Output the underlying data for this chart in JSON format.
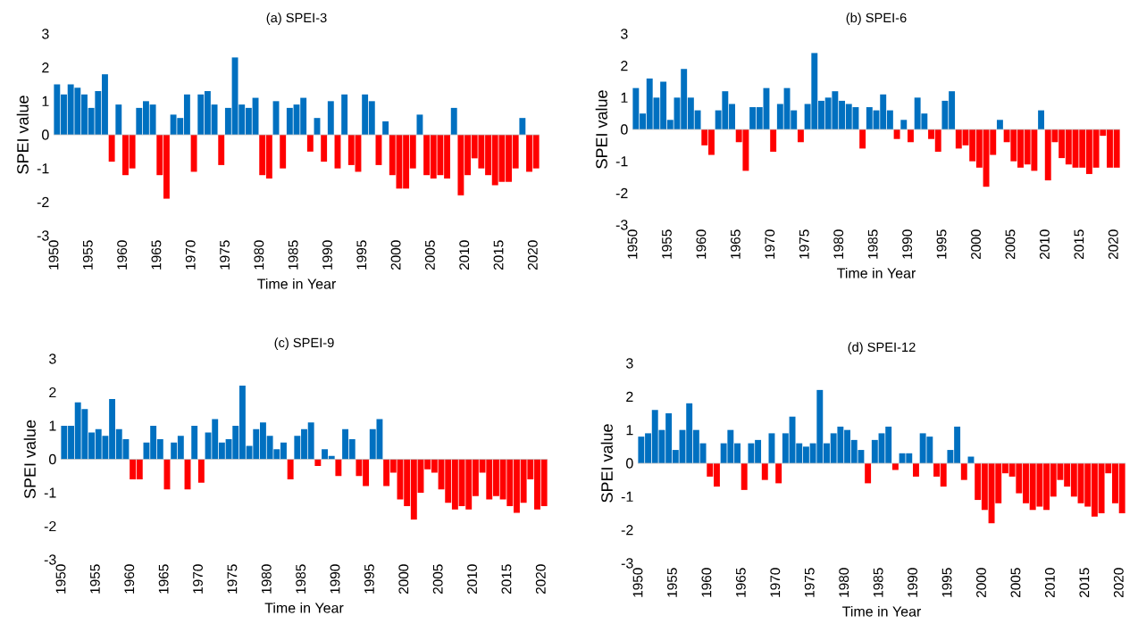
{
  "chart_data": [
    {
      "type": "bar",
      "title": "(a) SPEI-3",
      "xlabel": "Time in Year",
      "ylabel": "SPEI value",
      "x": [
        1950.5,
        1951.5,
        1952.5,
        1953.5,
        1954.5,
        1955.5,
        1956.5,
        1957.5,
        1958.5,
        1959.5,
        1960.5,
        1961.5,
        1962.5,
        1963.5,
        1964.5,
        1965.5,
        1966.5,
        1967.5,
        1968.5,
        1969.5,
        1970.5,
        1971.5,
        1972.5,
        1973.5,
        1974.5,
        1975.5,
        1976.5,
        1977.5,
        1978.5,
        1979.5,
        1980.5,
        1981.5,
        1982.5,
        1983.5,
        1984.5,
        1985.5,
        1986.5,
        1987.5,
        1988.5,
        1989.5,
        1990.5,
        1991.5,
        1992.5,
        1993.5,
        1994.5,
        1995.5,
        1996.5,
        1997.5,
        1998.5,
        1999.5,
        2000.5,
        2001.5,
        2002.5,
        2003.5,
        2004.5,
        2005.5,
        2006.5,
        2007.5,
        2008.5,
        2009.5,
        2010.5,
        2011.5,
        2012.5,
        2013.5,
        2014.5,
        2015.5,
        2016.5,
        2017.5,
        2018.5,
        2019.5,
        2020.5
      ],
      "values": [
        1.5,
        1.2,
        1.5,
        1.4,
        1.2,
        0.8,
        1.3,
        1.8,
        -0.8,
        0.9,
        -1.2,
        -1.0,
        0.8,
        1.0,
        0.9,
        -1.2,
        -1.9,
        0.6,
        0.5,
        1.2,
        -1.1,
        1.2,
        1.3,
        0.9,
        -0.9,
        0.8,
        2.3,
        0.9,
        0.8,
        1.1,
        -1.2,
        -1.3,
        1.0,
        -1.0,
        0.8,
        0.9,
        1.1,
        -0.5,
        0.5,
        -0.8,
        1.0,
        -1.0,
        1.2,
        -0.9,
        -1.1,
        1.2,
        1.0,
        -0.9,
        0.4,
        -1.2,
        -1.6,
        -1.6,
        -1.0,
        0.6,
        -1.2,
        -1.3,
        -1.2,
        -1.3,
        0.8,
        -1.8,
        -1.2,
        -0.7,
        -1.0,
        -1.2,
        -1.5,
        -1.4,
        -1.4,
        -1.0,
        0.5,
        -1.1,
        -1.0
      ],
      "colors": [
        "#0070c0",
        "#0070c0",
        "#0070c0",
        "#0070c0",
        "#0070c0",
        "#0070c0",
        "#0070c0",
        "#0070c0",
        "#ff0000",
        "#0070c0",
        "#ff0000",
        "#ff0000",
        "#0070c0",
        "#0070c0",
        "#0070c0",
        "#ff0000",
        "#ff0000",
        "#0070c0",
        "#0070c0",
        "#0070c0",
        "#ff0000",
        "#0070c0",
        "#0070c0",
        "#0070c0",
        "#ff0000",
        "#0070c0",
        "#0070c0",
        "#0070c0",
        "#0070c0",
        "#0070c0",
        "#ff0000",
        "#ff0000",
        "#0070c0",
        "#ff0000",
        "#0070c0",
        "#0070c0",
        "#0070c0",
        "#ff0000",
        "#0070c0",
        "#ff0000",
        "#0070c0",
        "#ff0000",
        "#0070c0",
        "#ff0000",
        "#ff0000",
        "#0070c0",
        "#0070c0",
        "#ff0000",
        "#0070c0",
        "#ff0000",
        "#ff0000",
        "#ff0000",
        "#ff0000",
        "#0070c0",
        "#ff0000",
        "#ff0000",
        "#ff0000",
        "#ff0000",
        "#0070c0",
        "#ff0000",
        "#ff0000",
        "#ff0000",
        "#ff0000",
        "#ff0000",
        "#ff0000",
        "#ff0000",
        "#ff0000",
        "#ff0000",
        "#0070c0",
        "#ff0000",
        "#ff0000"
      ],
      "xlim": [
        1950,
        2021
      ],
      "ylim": [
        -3,
        3
      ],
      "xticks": [
        1950,
        1955,
        1960,
        1965,
        1970,
        1975,
        1980,
        1985,
        1990,
        1995,
        2000,
        2005,
        2010,
        2015,
        2020
      ],
      "yticks": [
        -3,
        -2,
        -1,
        0,
        1,
        2,
        3
      ]
    },
    {
      "type": "bar",
      "title": "(b) SPEI-6",
      "xlabel": "Time in Year",
      "ylabel": "SPEI value",
      "x": [
        1950.5,
        1951.5,
        1952.5,
        1953.5,
        1954.5,
        1955.5,
        1956.5,
        1957.5,
        1958.5,
        1959.5,
        1960.5,
        1961.5,
        1962.5,
        1963.5,
        1964.5,
        1965.5,
        1966.5,
        1967.5,
        1968.5,
        1969.5,
        1970.5,
        1971.5,
        1972.5,
        1973.5,
        1974.5,
        1975.5,
        1976.5,
        1977.5,
        1978.5,
        1979.5,
        1980.5,
        1981.5,
        1982.5,
        1983.5,
        1984.5,
        1985.5,
        1986.5,
        1987.5,
        1988.5,
        1989.5,
        1990.5,
        1991.5,
        1992.5,
        1993.5,
        1994.5,
        1995.5,
        1996.5,
        1997.5,
        1998.5,
        1999.5,
        2000.5,
        2001.5,
        2002.5,
        2003.5,
        2004.5,
        2005.5,
        2006.5,
        2007.5,
        2008.5,
        2009.5,
        2010.5,
        2011.5,
        2012.5,
        2013.5,
        2014.5,
        2015.5,
        2016.5,
        2017.5,
        2018.5,
        2019.5,
        2020.5
      ],
      "values": [
        1.3,
        0.5,
        1.6,
        1.0,
        1.5,
        0.3,
        1.0,
        1.9,
        1.0,
        0.6,
        -0.5,
        -0.8,
        0.6,
        1.2,
        0.8,
        -0.4,
        -1.3,
        0.7,
        0.7,
        1.3,
        -0.7,
        0.8,
        1.3,
        0.6,
        -0.4,
        0.8,
        2.4,
        0.9,
        1.0,
        1.2,
        0.9,
        0.8,
        0.7,
        -0.6,
        0.7,
        0.6,
        1.1,
        0.6,
        -0.3,
        0.3,
        -0.4,
        1.0,
        0.5,
        -0.3,
        -0.7,
        0.9,
        1.2,
        -0.6,
        -0.5,
        -1.0,
        -1.2,
        -1.8,
        -0.8,
        0.3,
        -0.4,
        -1.0,
        -1.2,
        -1.1,
        -1.3,
        0.6,
        -1.6,
        -0.4,
        -0.9,
        -1.1,
        -1.2,
        -1.2,
        -1.4,
        -1.2,
        -0.2,
        -1.2,
        -1.2
      ],
      "colors": [
        "#0070c0",
        "#0070c0",
        "#0070c0",
        "#0070c0",
        "#0070c0",
        "#0070c0",
        "#0070c0",
        "#0070c0",
        "#0070c0",
        "#0070c0",
        "#ff0000",
        "#ff0000",
        "#0070c0",
        "#0070c0",
        "#0070c0",
        "#ff0000",
        "#ff0000",
        "#0070c0",
        "#0070c0",
        "#0070c0",
        "#ff0000",
        "#0070c0",
        "#0070c0",
        "#0070c0",
        "#ff0000",
        "#0070c0",
        "#0070c0",
        "#0070c0",
        "#0070c0",
        "#0070c0",
        "#0070c0",
        "#0070c0",
        "#0070c0",
        "#ff0000",
        "#0070c0",
        "#0070c0",
        "#0070c0",
        "#0070c0",
        "#ff0000",
        "#0070c0",
        "#ff0000",
        "#0070c0",
        "#0070c0",
        "#ff0000",
        "#ff0000",
        "#0070c0",
        "#0070c0",
        "#ff0000",
        "#ff0000",
        "#ff0000",
        "#ff0000",
        "#ff0000",
        "#ff0000",
        "#0070c0",
        "#ff0000",
        "#ff0000",
        "#ff0000",
        "#ff0000",
        "#ff0000",
        "#0070c0",
        "#ff0000",
        "#ff0000",
        "#ff0000",
        "#ff0000",
        "#ff0000",
        "#ff0000",
        "#ff0000",
        "#ff0000",
        "#ff0000",
        "#ff0000",
        "#ff0000"
      ],
      "xlim": [
        1950,
        2021
      ],
      "ylim": [
        -3,
        3
      ],
      "xticks": [
        1950,
        1955,
        1960,
        1965,
        1970,
        1975,
        1980,
        1985,
        1990,
        1995,
        2000,
        2005,
        2010,
        2015,
        2020
      ],
      "yticks": [
        -3,
        -2,
        -1,
        0,
        1,
        2,
        3
      ]
    },
    {
      "type": "bar",
      "title": "(c) SPEI-9",
      "xlabel": "Time in Year",
      "ylabel": "SPEI value",
      "x": [
        1950.5,
        1951.5,
        1952.5,
        1953.5,
        1954.5,
        1955.5,
        1956.5,
        1957.5,
        1958.5,
        1959.5,
        1960.5,
        1961.5,
        1962.5,
        1963.5,
        1964.5,
        1965.5,
        1966.5,
        1967.5,
        1968.5,
        1969.5,
        1970.5,
        1971.5,
        1972.5,
        1973.5,
        1974.5,
        1975.5,
        1976.5,
        1977.5,
        1978.5,
        1979.5,
        1980.5,
        1981.5,
        1982.5,
        1983.5,
        1984.5,
        1985.5,
        1986.5,
        1987.5,
        1988.5,
        1989.5,
        1990.5,
        1991.5,
        1992.5,
        1993.5,
        1994.5,
        1995.5,
        1996.5,
        1997.5,
        1998.5,
        1999.5,
        2000.5,
        2001.5,
        2002.5,
        2003.5,
        2004.5,
        2005.5,
        2006.5,
        2007.5,
        2008.5,
        2009.5,
        2010.5,
        2011.5,
        2012.5,
        2013.5,
        2014.5,
        2015.5,
        2016.5,
        2017.5,
        2018.5,
        2019.5,
        2020.5
      ],
      "values": [
        1.0,
        1.0,
        1.7,
        1.5,
        0.8,
        0.9,
        0.7,
        1.8,
        0.9,
        0.6,
        -0.6,
        -0.6,
        0.5,
        1.0,
        0.6,
        -0.9,
        0.5,
        0.7,
        -0.9,
        1.0,
        -0.7,
        0.8,
        1.2,
        0.5,
        0.6,
        1.0,
        2.2,
        0.4,
        0.9,
        1.1,
        0.7,
        0.3,
        0.5,
        -0.6,
        0.7,
        0.9,
        1.1,
        -0.2,
        0.3,
        0.1,
        -0.5,
        0.9,
        0.6,
        -0.5,
        -0.8,
        0.9,
        1.2,
        -0.8,
        -0.4,
        -1.2,
        -1.4,
        -1.8,
        -1.0,
        -0.3,
        -0.4,
        -0.9,
        -1.3,
        -1.5,
        -1.4,
        -1.5,
        -1.1,
        -0.4,
        -1.2,
        -1.1,
        -1.2,
        -1.4,
        -1.6,
        -1.3,
        -0.6,
        -1.5,
        -1.4
      ],
      "colors": [
        "#0070c0",
        "#0070c0",
        "#0070c0",
        "#0070c0",
        "#0070c0",
        "#0070c0",
        "#0070c0",
        "#0070c0",
        "#0070c0",
        "#0070c0",
        "#ff0000",
        "#ff0000",
        "#0070c0",
        "#0070c0",
        "#0070c0",
        "#ff0000",
        "#0070c0",
        "#0070c0",
        "#ff0000",
        "#0070c0",
        "#ff0000",
        "#0070c0",
        "#0070c0",
        "#0070c0",
        "#0070c0",
        "#0070c0",
        "#0070c0",
        "#0070c0",
        "#0070c0",
        "#0070c0",
        "#0070c0",
        "#0070c0",
        "#0070c0",
        "#ff0000",
        "#0070c0",
        "#0070c0",
        "#0070c0",
        "#ff0000",
        "#0070c0",
        "#0070c0",
        "#ff0000",
        "#0070c0",
        "#0070c0",
        "#ff0000",
        "#ff0000",
        "#0070c0",
        "#0070c0",
        "#ff0000",
        "#ff0000",
        "#ff0000",
        "#ff0000",
        "#ff0000",
        "#ff0000",
        "#ff0000",
        "#ff0000",
        "#ff0000",
        "#ff0000",
        "#ff0000",
        "#ff0000",
        "#ff0000",
        "#ff0000",
        "#ff0000",
        "#ff0000",
        "#ff0000",
        "#ff0000",
        "#ff0000",
        "#ff0000",
        "#ff0000",
        "#ff0000",
        "#ff0000",
        "#ff0000"
      ],
      "xlim": [
        1950,
        2021
      ],
      "ylim": [
        -3,
        3
      ],
      "xticks": [
        1950,
        1955,
        1960,
        1965,
        1970,
        1975,
        1980,
        1985,
        1990,
        1995,
        2000,
        2005,
        2010,
        2015,
        2020
      ],
      "yticks": [
        -3,
        -2,
        -1,
        0,
        1,
        2,
        3
      ]
    },
    {
      "type": "bar",
      "title": "(d) SPEI-12",
      "xlabel": "Time in Year",
      "ylabel": "SPEI value",
      "x": [
        1950.5,
        1951.5,
        1952.5,
        1953.5,
        1954.5,
        1955.5,
        1956.5,
        1957.5,
        1958.5,
        1959.5,
        1960.5,
        1961.5,
        1962.5,
        1963.5,
        1964.5,
        1965.5,
        1966.5,
        1967.5,
        1968.5,
        1969.5,
        1970.5,
        1971.5,
        1972.5,
        1973.5,
        1974.5,
        1975.5,
        1976.5,
        1977.5,
        1978.5,
        1979.5,
        1980.5,
        1981.5,
        1982.5,
        1983.5,
        1984.5,
        1985.5,
        1986.5,
        1987.5,
        1988.5,
        1989.5,
        1990.5,
        1991.5,
        1992.5,
        1993.5,
        1994.5,
        1995.5,
        1996.5,
        1997.5,
        1998.5,
        1999.5,
        2000.5,
        2001.5,
        2002.5,
        2003.5,
        2004.5,
        2005.5,
        2006.5,
        2007.5,
        2008.5,
        2009.5,
        2010.5,
        2011.5,
        2012.5,
        2013.5,
        2014.5,
        2015.5,
        2016.5,
        2017.5,
        2018.5,
        2019.5,
        2020.5
      ],
      "values": [
        0.8,
        0.9,
        1.6,
        1.0,
        1.5,
        0.4,
        1.0,
        1.8,
        1.0,
        0.6,
        -0.4,
        -0.7,
        0.6,
        1.0,
        0.6,
        -0.8,
        0.6,
        0.7,
        -0.5,
        0.9,
        -0.6,
        0.9,
        1.4,
        0.6,
        0.5,
        0.6,
        2.2,
        0.6,
        0.9,
        1.1,
        1.0,
        0.7,
        0.4,
        -0.6,
        0.7,
        0.9,
        1.1,
        -0.2,
        0.3,
        0.3,
        -0.4,
        0.9,
        0.8,
        -0.4,
        -0.7,
        0.4,
        1.1,
        -0.5,
        0.2,
        -1.1,
        -1.4,
        -1.8,
        -1.2,
        -0.3,
        -0.4,
        -0.9,
        -1.2,
        -1.4,
        -1.3,
        -1.4,
        -1.0,
        -0.5,
        -0.7,
        -1.0,
        -1.2,
        -1.3,
        -1.6,
        -1.5,
        -0.3,
        -1.2,
        -1.5
      ],
      "colors": [
        "#0070c0",
        "#0070c0",
        "#0070c0",
        "#0070c0",
        "#0070c0",
        "#0070c0",
        "#0070c0",
        "#0070c0",
        "#0070c0",
        "#0070c0",
        "#ff0000",
        "#ff0000",
        "#0070c0",
        "#0070c0",
        "#0070c0",
        "#ff0000",
        "#0070c0",
        "#0070c0",
        "#ff0000",
        "#0070c0",
        "#ff0000",
        "#0070c0",
        "#0070c0",
        "#0070c0",
        "#0070c0",
        "#0070c0",
        "#0070c0",
        "#0070c0",
        "#0070c0",
        "#0070c0",
        "#0070c0",
        "#0070c0",
        "#0070c0",
        "#ff0000",
        "#0070c0",
        "#0070c0",
        "#0070c0",
        "#ff0000",
        "#0070c0",
        "#0070c0",
        "#ff0000",
        "#0070c0",
        "#0070c0",
        "#ff0000",
        "#ff0000",
        "#0070c0",
        "#0070c0",
        "#ff0000",
        "#0070c0",
        "#ff0000",
        "#ff0000",
        "#ff0000",
        "#ff0000",
        "#ff0000",
        "#ff0000",
        "#ff0000",
        "#ff0000",
        "#ff0000",
        "#ff0000",
        "#ff0000",
        "#ff0000",
        "#ff0000",
        "#ff0000",
        "#ff0000",
        "#ff0000",
        "#ff0000",
        "#ff0000",
        "#ff0000",
        "#ff0000",
        "#ff0000",
        "#ff0000"
      ],
      "xlim": [
        1950,
        2021
      ],
      "ylim": [
        -3,
        3
      ],
      "xticks": [
        1950,
        1955,
        1960,
        1965,
        1970,
        1975,
        1980,
        1985,
        1990,
        1995,
        2000,
        2005,
        2010,
        2015,
        2020
      ],
      "yticks": [
        -3,
        -2,
        -1,
        0,
        1,
        2,
        3
      ]
    }
  ]
}
